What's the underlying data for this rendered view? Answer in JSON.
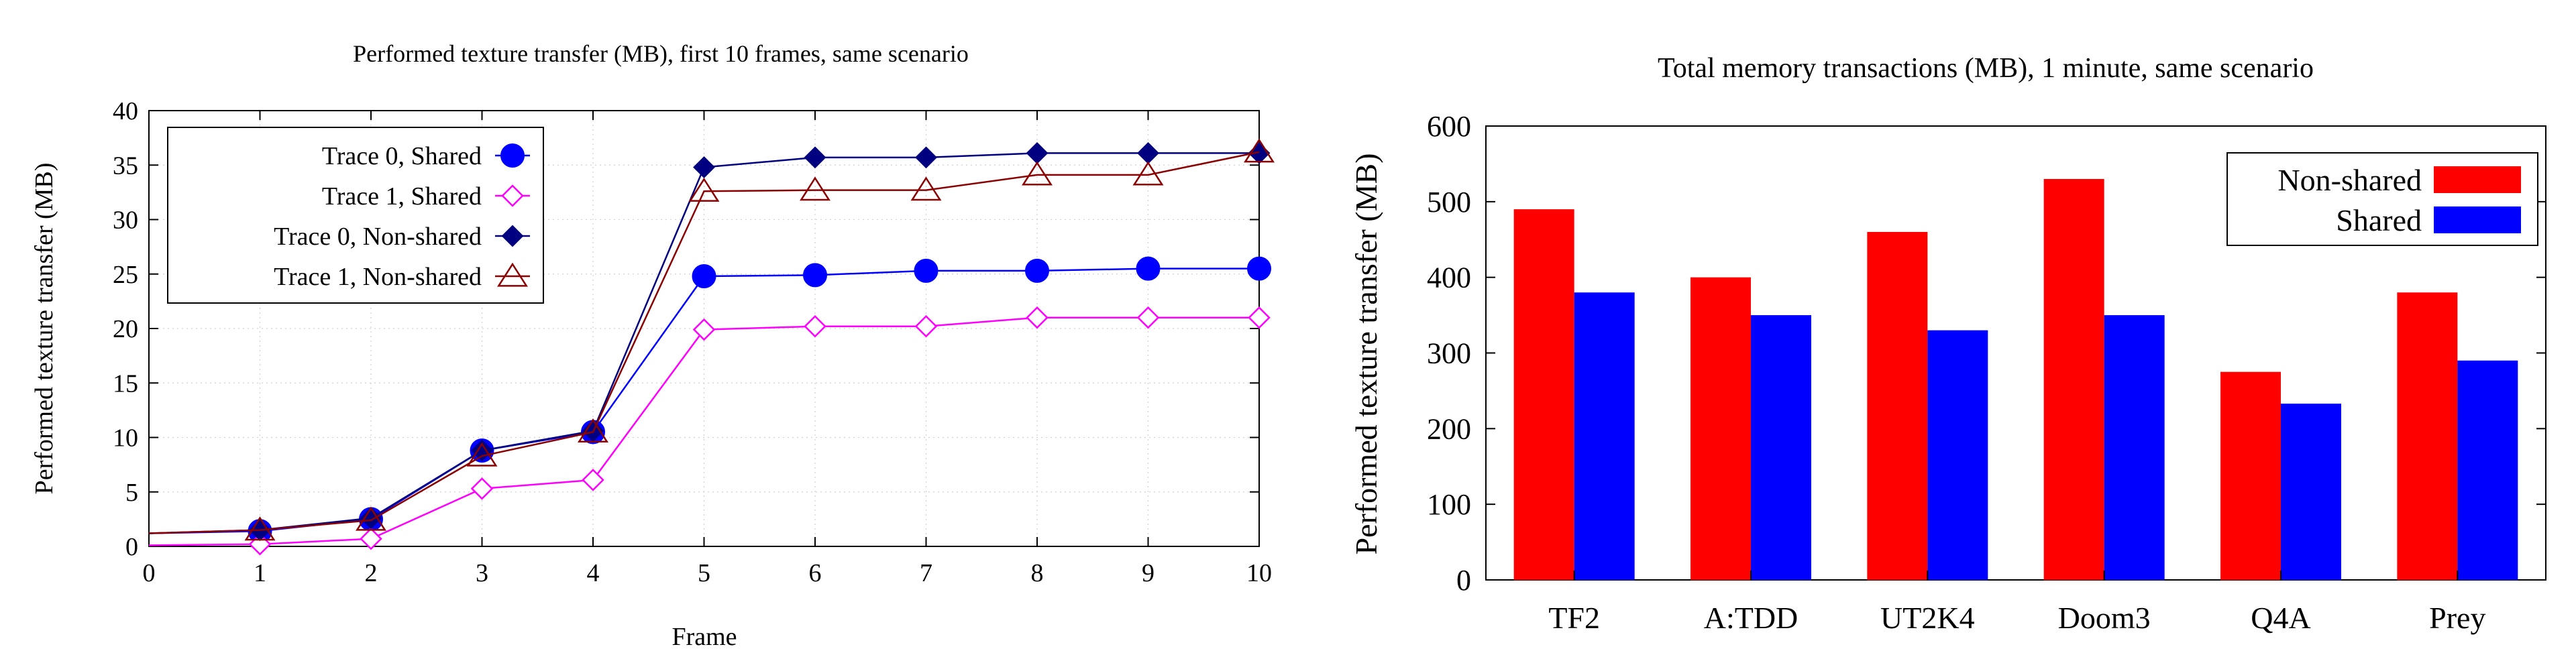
{
  "chart_data": [
    {
      "type": "line",
      "title": "Performed texture transfer (MB), first 10 frames, same scenario",
      "xlabel": "Frame",
      "ylabel": "Performed texture transfer (MB)",
      "xlim": [
        0,
        10
      ],
      "ylim": [
        0,
        40
      ],
      "xticks": [
        0,
        1,
        2,
        3,
        4,
        5,
        6,
        7,
        8,
        9,
        10
      ],
      "yticks": [
        0,
        5,
        10,
        15,
        20,
        25,
        30,
        35,
        40
      ],
      "grid": true,
      "legend_position": "top-left",
      "series": [
        {
          "name": "Trace 0, Shared",
          "color": "#0000ff",
          "marker": "filled-circle",
          "x": [
            0,
            1,
            2,
            3,
            4,
            5,
            6,
            7,
            8,
            9,
            10
          ],
          "y": [
            1.2,
            1.4,
            2.5,
            8.8,
            10.5,
            24.8,
            24.9,
            25.3,
            25.3,
            25.5,
            25.5
          ]
        },
        {
          "name": "Trace 1, Shared",
          "color": "#ff00ff",
          "marker": "open-diamond",
          "x": [
            0,
            1,
            2,
            3,
            4,
            5,
            6,
            7,
            8,
            9,
            10
          ],
          "y": [
            0.1,
            0.2,
            0.7,
            5.3,
            6.1,
            19.9,
            20.2,
            20.2,
            21.0,
            21.0,
            21.0
          ]
        },
        {
          "name": "Trace 0, Non-shared",
          "color": "#000080",
          "marker": "filled-diamond",
          "x": [
            0,
            1,
            2,
            3,
            4,
            5,
            6,
            7,
            8,
            9,
            10
          ],
          "y": [
            1.2,
            1.5,
            2.6,
            8.8,
            10.6,
            34.8,
            35.7,
            35.7,
            36.1,
            36.1,
            36.1
          ]
        },
        {
          "name": "Trace 1, Non-shared",
          "color": "#8b0000",
          "marker": "open-triangle",
          "x": [
            0,
            1,
            2,
            3,
            4,
            5,
            6,
            7,
            8,
            9,
            10
          ],
          "y": [
            1.2,
            1.5,
            2.4,
            8.3,
            10.5,
            32.6,
            32.7,
            32.7,
            34.1,
            34.1,
            36.2
          ]
        }
      ]
    },
    {
      "type": "bar",
      "title": "Total memory transactions (MB), 1 minute, same scenario",
      "xlabel": "",
      "ylabel": "Performed texture transfer (MB)",
      "ylim": [
        0,
        600
      ],
      "yticks": [
        0,
        100,
        200,
        300,
        400,
        500,
        600
      ],
      "grid": false,
      "legend_position": "top-right",
      "categories": [
        "TF2",
        "A:TDD",
        "UT2K4",
        "Doom3",
        "Q4A",
        "Prey"
      ],
      "series": [
        {
          "name": "Non-shared",
          "color": "#ff0000",
          "values": [
            490,
            400,
            460,
            530,
            275,
            380
          ]
        },
        {
          "name": "Shared",
          "color": "#0000ff",
          "values": [
            380,
            350,
            330,
            350,
            233,
            290
          ]
        }
      ]
    }
  ]
}
